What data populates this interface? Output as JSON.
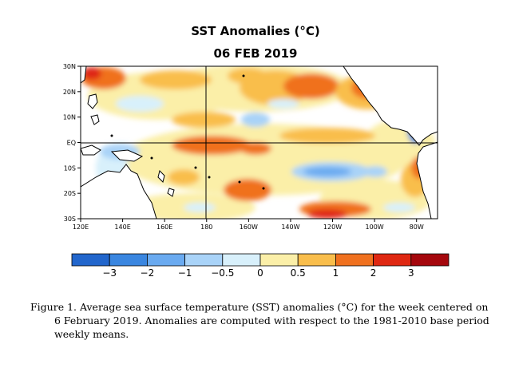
{
  "title": "SST Anomalies (°C)",
  "date": "06 FEB 2019",
  "map": {
    "lat_labels": [
      "30N",
      "20N",
      "10N",
      "EQ",
      "10S",
      "20S",
      "30S"
    ],
    "lon_labels": [
      "120E",
      "140E",
      "160E",
      "180",
      "160W",
      "140W",
      "120W",
      "100W",
      "80W"
    ],
    "lon_range": [
      "120E",
      "70W"
    ],
    "lat_range": [
      "30S",
      "30N"
    ],
    "colors": {
      "land": "#ffffff",
      "neutral": "#ffffff"
    }
  },
  "colorbar": {
    "tick_labels": [
      "−3",
      "−2",
      "−1",
      "−0.5",
      "0",
      "0.5",
      "1",
      "2",
      "3"
    ],
    "bins": [
      {
        "range": "< -3",
        "color": "#2266cc"
      },
      {
        "range": "-3 to -2",
        "color": "#3a86e0"
      },
      {
        "range": "-2 to -1",
        "color": "#6aaaf0"
      },
      {
        "range": "-1 to -0.5",
        "color": "#a9d3f8"
      },
      {
        "range": "-0.5 to 0",
        "color": "#d8f0fb"
      },
      {
        "range": "0 to 0.5",
        "color": "#fbefa8"
      },
      {
        "range": "0.5 to 1",
        "color": "#f9be4c"
      },
      {
        "range": "1 to 2",
        "color": "#f0711f"
      },
      {
        "range": "2 to 3",
        "color": "#df2812"
      },
      {
        "range": "> 3",
        "color": "#a5070d"
      }
    ]
  },
  "caption": "Figure 1. Average sea surface temperature (SST) anomalies (°C) for the week centered on 6 February 2019.  Anomalies are computed with respect to the 1981-2010 base period weekly means."
}
